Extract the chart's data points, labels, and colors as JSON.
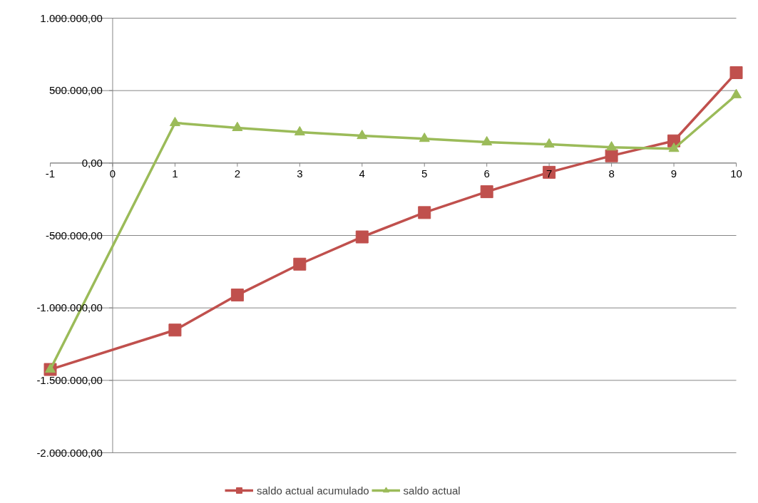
{
  "chart_data": {
    "type": "line",
    "x": [
      -1,
      1,
      2,
      3,
      4,
      5,
      6,
      7,
      8,
      9,
      10
    ],
    "series": [
      {
        "name": "saldo actual acumulado",
        "color": "#c0504d",
        "marker": "square",
        "values": [
          -1425000,
          -1153000,
          -911000,
          -698000,
          -510000,
          -342000,
          -198000,
          -64000,
          50000,
          153000,
          624000
        ]
      },
      {
        "name": "saldo actual",
        "color": "#9bbb59",
        "marker": "triangle",
        "values": [
          -1425000,
          277000,
          243000,
          213000,
          188000,
          168000,
          144000,
          129000,
          109000,
          99000,
          470000
        ]
      }
    ],
    "xlim": [
      -1,
      10
    ],
    "xticks": [
      -1,
      0,
      1,
      2,
      3,
      4,
      5,
      6,
      7,
      8,
      9,
      10
    ],
    "ylim": [
      -2000000,
      1000000
    ],
    "yticks": [
      {
        "value": -2000000,
        "label": "-2.000.000,00"
      },
      {
        "value": -1500000,
        "label": "-1.500.000,00"
      },
      {
        "value": -1000000,
        "label": "-1.000.000,00"
      },
      {
        "value": -500000,
        "label": "-500.000,00"
      },
      {
        "value": 0,
        "label": "0,00"
      },
      {
        "value": 500000,
        "label": "500.000,00"
      },
      {
        "value": 1000000,
        "label": "1.000.000,00"
      }
    ],
    "grid": "y",
    "legend": "bottom",
    "line_style": "solid"
  }
}
